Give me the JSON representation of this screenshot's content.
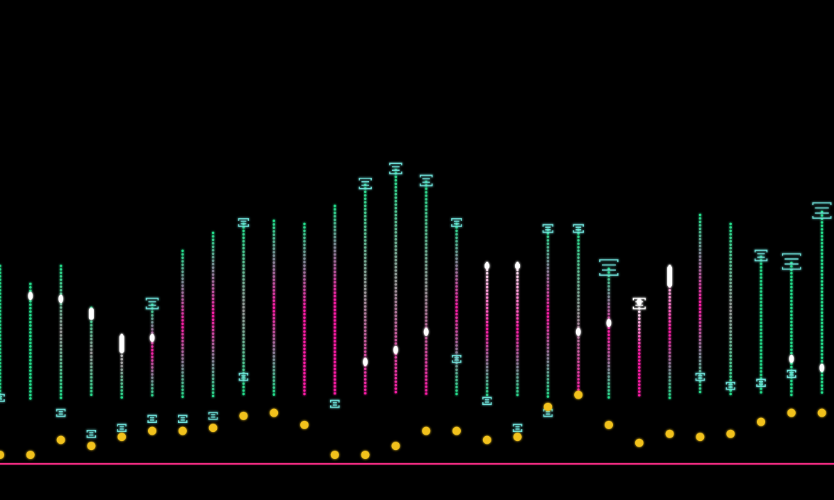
{
  "chart_data": {
    "type": "bar",
    "title": "",
    "xlabel": "",
    "ylabel": "",
    "ylim": [
      0,
      100
    ],
    "grid": false,
    "legend": "none",
    "baseline_color": "#ff2e8a",
    "background": "#000000",
    "palette": {
      "green": "#22e08c",
      "pink": "#ff1aa8",
      "gray": "#9a9a9a",
      "white": "#ffffff",
      "yellow": "#f2c21b",
      "cyan": "#6fe3dc"
    },
    "columns": [
      {
        "top": 66,
        "bottom": 22,
        "dot": 3,
        "low_marker": 22,
        "colors": [
          "green",
          "green",
          "green"
        ]
      },
      {
        "top": 60,
        "bottom": 21,
        "highlight": 56,
        "dot": 3,
        "colors": [
          "green",
          "green",
          "green"
        ]
      },
      {
        "top": 66,
        "bottom": 22,
        "highlight": 55,
        "dot": 8,
        "low_marker": 17,
        "colors": [
          "green",
          "gray",
          "green"
        ]
      },
      {
        "top": 52,
        "bottom": 22,
        "cap": [
          52,
          48
        ],
        "dot": 6,
        "low_marker": 10,
        "colors": [
          "green",
          "gray",
          "green"
        ]
      },
      {
        "top": 43,
        "bottom": 22,
        "cap": [
          43,
          37
        ],
        "dot": 9,
        "low_marker": 12,
        "colors": [
          "white",
          "gray",
          "green"
        ]
      },
      {
        "top": 53,
        "bottom": 22,
        "top_marker": "bracket",
        "highlight": 42,
        "dot": 11,
        "low_marker": 15,
        "colors": [
          "green",
          "pink",
          "green"
        ]
      },
      {
        "top": 71,
        "bottom": 22,
        "dot": 11,
        "low_marker": 15,
        "colors": [
          "green",
          "pink",
          "green"
        ]
      },
      {
        "top": 77,
        "bottom": 22,
        "dot": 12,
        "low_marker": 16,
        "colors": [
          "green",
          "pink",
          "green"
        ]
      },
      {
        "top": 80,
        "bottom": 23,
        "top_marker": "bracket-small",
        "dot": 16,
        "low_marker": 29,
        "colors": [
          "green",
          "gray",
          "green"
        ]
      },
      {
        "top": 81,
        "bottom": 23,
        "dot": 17,
        "colors": [
          "green",
          "pink",
          "green"
        ]
      },
      {
        "top": 80,
        "bottom": 23,
        "dot": 13,
        "colors": [
          "green",
          "pink",
          "pink"
        ]
      },
      {
        "top": 86,
        "bottom": 23,
        "dot": 3,
        "low_marker": 20,
        "colors": [
          "green",
          "pink",
          "pink"
        ]
      },
      {
        "top": 93,
        "bottom": 23,
        "top_marker": "bracket",
        "highlight": 34,
        "dot": 3,
        "colors": [
          "green",
          "gray",
          "pink"
        ]
      },
      {
        "top": 98,
        "bottom": 23,
        "top_marker": "bracket",
        "highlight": 38,
        "dot": 6,
        "colors": [
          "green",
          "gray",
          "pink"
        ]
      },
      {
        "top": 94,
        "bottom": 23,
        "top_marker": "bracket",
        "highlight": 44,
        "dot": 11,
        "colors": [
          "green",
          "gray",
          "pink"
        ]
      },
      {
        "top": 80,
        "bottom": 23,
        "top_marker": "bracket-small",
        "low_marker": 35,
        "dot": 11,
        "colors": [
          "green",
          "pink",
          "green"
        ]
      },
      {
        "top": 67,
        "bottom": 22,
        "cap": [
          67,
          65
        ],
        "low_marker": 21,
        "dot": 8,
        "colors": [
          "white",
          "pink",
          "green"
        ]
      },
      {
        "top": 67,
        "bottom": 22,
        "cap": [
          67,
          65
        ],
        "low_marker": 12,
        "dot": 9,
        "colors": [
          "white",
          "pink",
          "green"
        ]
      },
      {
        "top": 78,
        "bottom": 22,
        "top_marker": "bracket-small",
        "low_marker": 17,
        "dot": 19,
        "colors": [
          "green",
          "pink",
          "green"
        ]
      },
      {
        "top": 78,
        "bottom": 23,
        "top_marker": "bracket-small",
        "highlight": 44,
        "dot": 23,
        "colors": [
          "green",
          "gray",
          "pink"
        ]
      },
      {
        "top": 65,
        "bottom": 22,
        "top_marker": "bracket-large",
        "highlight": 47,
        "dot": 13,
        "colors": [
          "green",
          "pink",
          "green"
        ]
      },
      {
        "top": 53,
        "bottom": 22,
        "top_marker": "bracket",
        "cap": [
          55,
          53
        ],
        "dot": 7,
        "colors": [
          "white",
          "pink",
          "pink"
        ]
      },
      {
        "top": 66,
        "bottom": 22,
        "cap": [
          66,
          59
        ],
        "dot": 10,
        "colors": [
          "white",
          "pink",
          "green"
        ]
      },
      {
        "top": 83,
        "bottom": 23,
        "low_marker": 29,
        "dot": 9,
        "colors": [
          "green",
          "pink",
          "green"
        ]
      },
      {
        "top": 80,
        "bottom": 23,
        "low_marker": 26,
        "dot": 10,
        "colors": [
          "green",
          "gray",
          "green"
        ]
      },
      {
        "top": 69,
        "bottom": 23,
        "top_marker": "bracket",
        "low_marker": 27,
        "dot": 14,
        "colors": [
          "green",
          "green",
          "green"
        ]
      },
      {
        "top": 67,
        "bottom": 23,
        "top_marker": "bracket-large",
        "low_marker": 30,
        "highlight": 35,
        "dot": 17,
        "colors": [
          "green",
          "green",
          "green"
        ]
      },
      {
        "top": 84,
        "bottom": 23,
        "top_marker": "bracket-large",
        "highlight": 32,
        "dot": 17,
        "colors": [
          "green",
          "green",
          "green"
        ]
      }
    ]
  }
}
